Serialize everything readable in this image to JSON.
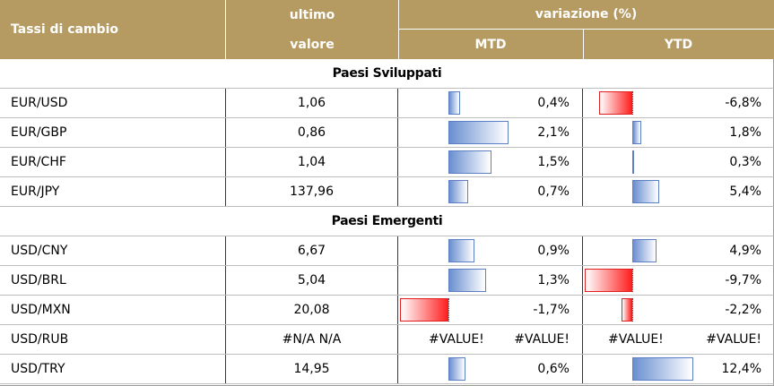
{
  "header": {
    "title": "Tassi di cambio",
    "ultimo": "ultimo",
    "valore": "valore",
    "variazione": "variazione (%)",
    "mtd": "MTD",
    "ytd": "YTD"
  },
  "sections": {
    "developed": "Paesi Sviluppati",
    "emerging": "Paesi Emergenti"
  },
  "rows": [
    {
      "name": "EUR/USD",
      "value": "1,06",
      "mtd": "0,4%",
      "mtd_num": 0.4,
      "ytd": "-6,8%",
      "ytd_num": -6.8
    },
    {
      "name": "EUR/GBP",
      "value": "0,86",
      "mtd": "2,1%",
      "mtd_num": 2.1,
      "ytd": "1,8%",
      "ytd_num": 1.8
    },
    {
      "name": "EUR/CHF",
      "value": "1,04",
      "mtd": "1,5%",
      "mtd_num": 1.5,
      "ytd": "0,3%",
      "ytd_num": 0.3
    },
    {
      "name": "EUR/JPY",
      "value": "137,96",
      "mtd": "0,7%",
      "mtd_num": 0.7,
      "ytd": "5,4%",
      "ytd_num": 5.4
    },
    {
      "name": "USD/CNY",
      "value": "6,67",
      "mtd": "0,9%",
      "mtd_num": 0.9,
      "ytd": "4,9%",
      "ytd_num": 4.9
    },
    {
      "name": "USD/BRL",
      "value": "5,04",
      "mtd": "1,3%",
      "mtd_num": 1.3,
      "ytd": "-9,7%",
      "ytd_num": -9.7
    },
    {
      "name": "USD/MXN",
      "value": "20,08",
      "mtd": "-1,7%",
      "mtd_num": -1.7,
      "ytd": "-2,2%",
      "ytd_num": -2.2
    },
    {
      "name": "USD/RUB",
      "value": "#N/A N/A",
      "mtd_left": "#VALUE!",
      "mtd": "#VALUE!",
      "ytd_left": "#VALUE!",
      "ytd": "#VALUE!"
    },
    {
      "name": "USD/TRY",
      "value": "14,95",
      "mtd": "0,6%",
      "mtd_num": 0.6,
      "ytd": "12,4%",
      "ytd_num": 12.4
    }
  ],
  "colors": {
    "header_bg": "#b59b62",
    "bar_positive": "#6a8fd0",
    "bar_negative": "#ff2020"
  }
}
